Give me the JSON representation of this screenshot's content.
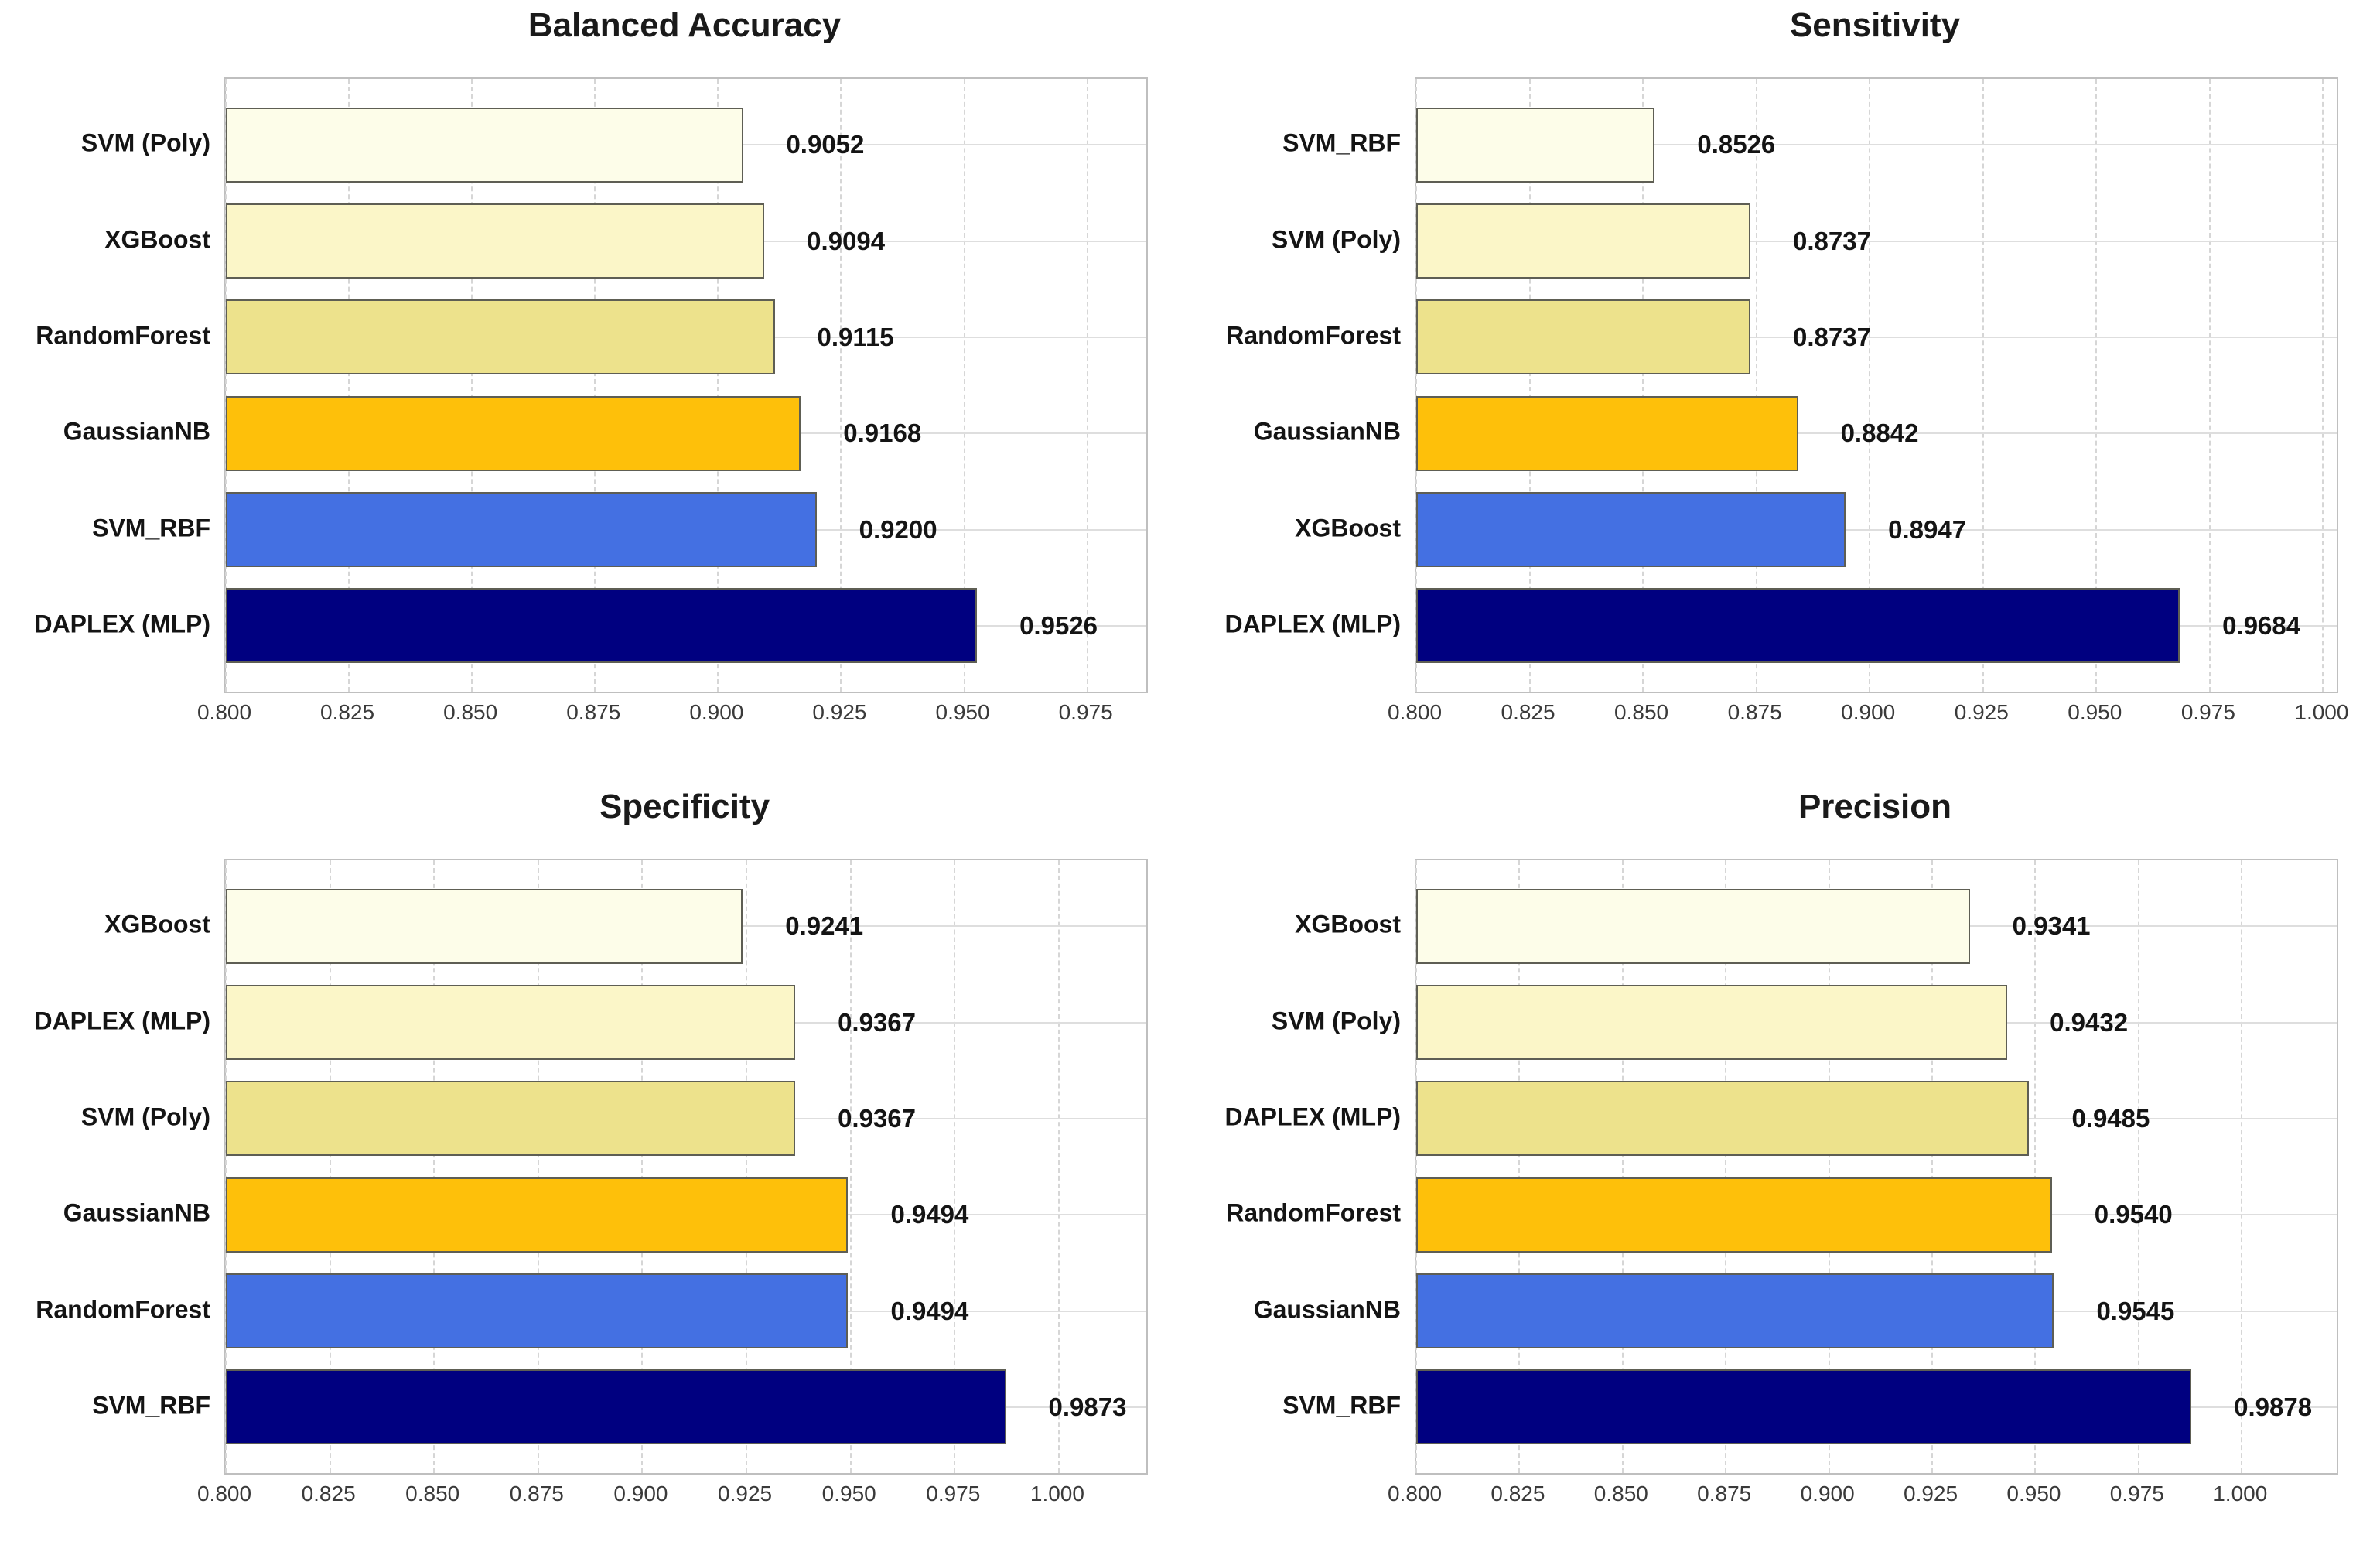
{
  "figure": {
    "background": "#ffffff",
    "bar_palette": [
      "#FDFDE9",
      "#FBF6C8",
      "#EDE28C",
      "#FEC00A",
      "#4470E2",
      "#000080"
    ],
    "bar_edge_color": "#5e5e54",
    "vertical_grid_color": "#d6d6d6",
    "horizontal_grid_color": "#dedede",
    "plot_border_color": "#bfbfbf",
    "title_color": "#1a1a1a",
    "text_color": "#141414",
    "tick_color": "#3a3a3a"
  },
  "chart_data": [
    {
      "type": "bar",
      "orientation": "horizontal",
      "title": "Balanced Accuracy",
      "categories": [
        "SVM (Poly)",
        "XGBoost",
        "RandomForest",
        "GaussianNB",
        "SVM_RBF",
        "DAPLEX (MLP)"
      ],
      "values": [
        0.9052,
        0.9094,
        0.9115,
        0.9168,
        0.92,
        0.9526
      ],
      "value_labels": [
        "0.9052",
        "0.9094",
        "0.9115",
        "0.9168",
        "0.9200",
        "0.9526"
      ],
      "xlim": [
        0.8,
        0.987
      ],
      "xticks": [
        0.8,
        0.825,
        0.85,
        0.875,
        0.9,
        0.925,
        0.95,
        0.975
      ],
      "xtick_labels": [
        "0.800",
        "0.825",
        "0.850",
        "0.875",
        "0.900",
        "0.925",
        "0.950",
        "0.975"
      ],
      "grid": "vertical-dashed-and-horizontal-solid",
      "legend": "none"
    },
    {
      "type": "bar",
      "orientation": "horizontal",
      "title": "Sensitivity",
      "categories": [
        "SVM_RBF",
        "SVM (Poly)",
        "RandomForest",
        "GaussianNB",
        "XGBoost",
        "DAPLEX (MLP)"
      ],
      "values": [
        0.8526,
        0.8737,
        0.8737,
        0.8842,
        0.8947,
        0.9684
      ],
      "value_labels": [
        "0.8526",
        "0.8737",
        "0.8737",
        "0.8842",
        "0.8947",
        "0.9684"
      ],
      "xlim": [
        0.8,
        1.003
      ],
      "xticks": [
        0.8,
        0.825,
        0.85,
        0.875,
        0.9,
        0.925,
        0.95,
        0.975,
        1.0
      ],
      "xtick_labels": [
        "0.800",
        "0.825",
        "0.850",
        "0.875",
        "0.900",
        "0.925",
        "0.950",
        "0.975",
        "1.000"
      ],
      "grid": "vertical-dashed-and-horizontal-solid",
      "legend": "none"
    },
    {
      "type": "bar",
      "orientation": "horizontal",
      "title": "Specificity",
      "categories": [
        "XGBoost",
        "DAPLEX (MLP)",
        "SVM (Poly)",
        "GaussianNB",
        "RandomForest",
        "SVM_RBF"
      ],
      "values": [
        0.9241,
        0.9367,
        0.9367,
        0.9494,
        0.9494,
        0.9873
      ],
      "value_labels": [
        "0.9241",
        "0.9367",
        "0.9367",
        "0.9494",
        "0.9494",
        "0.9873"
      ],
      "xlim": [
        0.8,
        1.021
      ],
      "xticks": [
        0.8,
        0.825,
        0.85,
        0.875,
        0.9,
        0.925,
        0.95,
        0.975,
        1.0
      ],
      "xtick_labels": [
        "0.800",
        "0.825",
        "0.850",
        "0.875",
        "0.900",
        "0.925",
        "0.950",
        "0.975",
        "1.000"
      ],
      "grid": "vertical-dashed-and-horizontal-solid",
      "legend": "none"
    },
    {
      "type": "bar",
      "orientation": "horizontal",
      "title": "Precision",
      "categories": [
        "XGBoost",
        "SVM (Poly)",
        "DAPLEX (MLP)",
        "RandomForest",
        "GaussianNB",
        "SVM_RBF"
      ],
      "values": [
        0.9341,
        0.9432,
        0.9485,
        0.954,
        0.9545,
        0.9878
      ],
      "value_labels": [
        "0.9341",
        "0.9432",
        "0.9485",
        "0.9540",
        "0.9545",
        "0.9878"
      ],
      "xlim": [
        0.8,
        1.023
      ],
      "xticks": [
        0.8,
        0.825,
        0.85,
        0.875,
        0.9,
        0.925,
        0.95,
        0.975,
        1.0
      ],
      "xtick_labels": [
        "0.800",
        "0.825",
        "0.850",
        "0.875",
        "0.900",
        "0.925",
        "0.950",
        "0.975",
        "1.000"
      ],
      "grid": "vertical-dashed-and-horizontal-solid",
      "legend": "none"
    }
  ]
}
